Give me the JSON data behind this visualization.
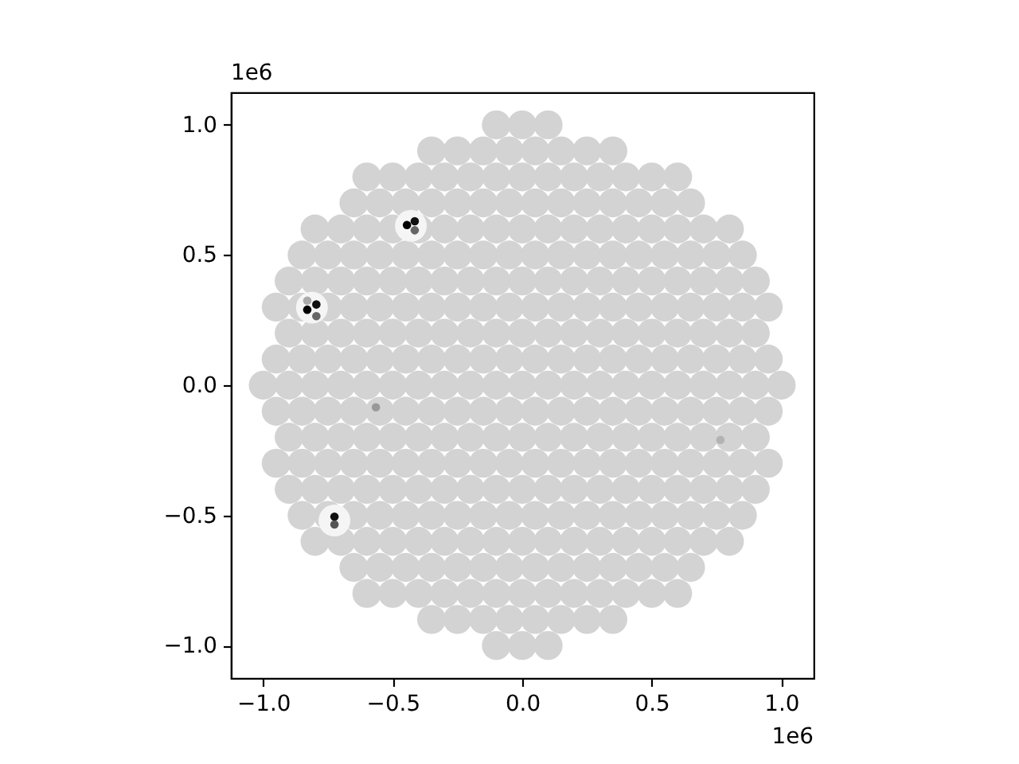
{
  "chart_data": {
    "type": "scatter",
    "annotations": [
      "1e6",
      "1e6"
    ],
    "marker": "circle",
    "xlim": [
      -1.125,
      1.125
    ],
    "ylim": [
      -1.125,
      1.125
    ],
    "xticks": [
      {
        "value": -1,
        "label": "−1.0"
      },
      {
        "value": -0.5,
        "label": "−0.5"
      },
      {
        "value": 0,
        "label": "0.0"
      },
      {
        "value": 0.5,
        "label": "0.5"
      },
      {
        "value": 1,
        "label": "1.0"
      }
    ],
    "yticks": [
      {
        "value": -1,
        "label": "−1.0"
      },
      {
        "value": -0.5,
        "label": "−0.5"
      },
      {
        "value": 0,
        "label": "0.0"
      },
      {
        "value": 0.5,
        "label": "0.5"
      },
      {
        "value": 1,
        "label": "1.0"
      }
    ],
    "series": [
      {
        "color": "#d3d3d3",
        "x": [
          -0.1,
          0,
          0.1,
          -0.35,
          -0.25,
          -0.15,
          -0.05,
          0.05,
          0.15,
          0.25,
          0.35,
          -0.6,
          -0.5,
          -0.4,
          -0.3,
          -0.2,
          -0.1,
          0,
          0.1,
          0.2,
          0.3,
          0.4,
          0.5,
          0.6,
          -0.65,
          -0.55,
          -0.45,
          -0.35,
          -0.25,
          -0.15,
          -0.05,
          0.05,
          0.15,
          0.25,
          0.35,
          0.45,
          0.55,
          0.65,
          -0.8,
          -0.7,
          -0.6,
          -0.5,
          -0.4,
          -0.3,
          -0.2,
          -0.1,
          0,
          0.1,
          0.2,
          0.3,
          0.4,
          0.5,
          0.6,
          0.7,
          0.8,
          -0.85,
          -0.75,
          -0.65,
          -0.55,
          -0.45,
          -0.35,
          -0.25,
          -0.15,
          -0.05,
          0.05,
          0.15,
          0.25,
          0.35,
          0.45,
          0.55,
          0.65,
          0.75,
          0.85,
          -0.9,
          -0.8,
          -0.7,
          -0.6,
          -0.5,
          -0.4,
          -0.3,
          -0.2,
          -0.1,
          0,
          0.1,
          0.2,
          0.3,
          0.4,
          0.5,
          0.6,
          0.7,
          0.8,
          0.9,
          -0.95,
          -0.85,
          -0.75,
          -0.65,
          -0.55,
          -0.45,
          -0.35,
          -0.25,
          -0.15,
          -0.05,
          0.05,
          0.15,
          0.25,
          0.35,
          0.45,
          0.55,
          0.65,
          0.75,
          0.85,
          0.95,
          -0.9,
          -0.8,
          -0.7,
          -0.6,
          -0.5,
          -0.4,
          -0.3,
          -0.2,
          -0.1,
          0,
          0.1,
          0.2,
          0.3,
          0.4,
          0.5,
          0.6,
          0.7,
          0.8,
          0.9,
          -0.95,
          -0.85,
          -0.75,
          -0.65,
          -0.55,
          -0.45,
          -0.35,
          -0.25,
          -0.15,
          -0.05,
          0.05,
          0.15,
          0.25,
          0.35,
          0.45,
          0.55,
          0.65,
          0.75,
          0.85,
          0.95,
          -1,
          -0.9,
          -0.8,
          -0.7,
          -0.6,
          -0.5,
          -0.4,
          -0.3,
          -0.2,
          -0.1,
          0,
          0.1,
          0.2,
          0.3,
          0.4,
          0.5,
          0.6,
          0.7,
          0.8,
          0.9,
          1,
          -0.95,
          -0.85,
          -0.75,
          -0.65,
          -0.55,
          -0.45,
          -0.35,
          -0.25,
          -0.15,
          -0.05,
          0.05,
          0.15,
          0.25,
          0.35,
          0.45,
          0.55,
          0.65,
          0.75,
          0.85,
          0.95,
          -0.9,
          -0.8,
          -0.7,
          -0.6,
          -0.5,
          -0.4,
          -0.3,
          -0.2,
          -0.1,
          0,
          0.1,
          0.2,
          0.3,
          0.4,
          0.5,
          0.6,
          0.7,
          0.8,
          0.9,
          -0.95,
          -0.85,
          -0.75,
          -0.65,
          -0.55,
          -0.45,
          -0.35,
          -0.25,
          -0.15,
          -0.05,
          0.05,
          0.15,
          0.25,
          0.35,
          0.45,
          0.55,
          0.65,
          0.75,
          0.85,
          0.95,
          -0.9,
          -0.8,
          -0.7,
          -0.6,
          -0.5,
          -0.4,
          -0.3,
          -0.2,
          -0.1,
          0,
          0.1,
          0.2,
          0.3,
          0.4,
          0.5,
          0.6,
          0.7,
          0.8,
          0.9,
          -0.85,
          -0.75,
          -0.65,
          -0.55,
          -0.45,
          -0.35,
          -0.25,
          -0.15,
          -0.05,
          0.05,
          0.15,
          0.25,
          0.35,
          0.45,
          0.55,
          0.65,
          0.75,
          0.85,
          -0.8,
          -0.7,
          -0.6,
          -0.5,
          -0.4,
          -0.3,
          -0.2,
          -0.1,
          0,
          0.1,
          0.2,
          0.3,
          0.4,
          0.5,
          0.6,
          0.7,
          0.8,
          -0.65,
          -0.55,
          -0.45,
          -0.35,
          -0.25,
          -0.15,
          -0.05,
          0.05,
          0.15,
          0.25,
          0.35,
          0.45,
          0.55,
          0.65,
          -0.6,
          -0.5,
          -0.4,
          -0.3,
          -0.2,
          -0.1,
          0,
          0.1,
          0.2,
          0.3,
          0.4,
          0.5,
          0.6,
          -0.35,
          -0.25,
          -0.15,
          -0.05,
          0.05,
          0.15,
          0.25,
          0.35,
          -0.1,
          0,
          0.1
        ],
        "values": [
          1,
          1,
          1,
          0.9,
          0.9,
          0.9,
          0.9,
          0.9,
          0.9,
          0.9,
          0.9,
          0.8,
          0.8,
          0.8,
          0.8,
          0.8,
          0.8,
          0.8,
          0.8,
          0.8,
          0.8,
          0.8,
          0.8,
          0.8,
          0.7,
          0.7,
          0.7,
          0.7,
          0.7,
          0.7,
          0.7,
          0.7,
          0.7,
          0.7,
          0.7,
          0.7,
          0.7,
          0.7,
          0.6,
          0.6,
          0.6,
          0.6,
          0.6,
          0.6,
          0.6,
          0.6,
          0.6,
          0.6,
          0.6,
          0.6,
          0.6,
          0.6,
          0.6,
          0.6,
          0.6,
          0.5,
          0.5,
          0.5,
          0.5,
          0.5,
          0.5,
          0.5,
          0.5,
          0.5,
          0.5,
          0.5,
          0.5,
          0.5,
          0.5,
          0.5,
          0.5,
          0.5,
          0.5,
          0.4,
          0.4,
          0.4,
          0.4,
          0.4,
          0.4,
          0.4,
          0.4,
          0.4,
          0.4,
          0.4,
          0.4,
          0.4,
          0.4,
          0.4,
          0.4,
          0.4,
          0.4,
          0.4,
          0.3,
          0.3,
          0.3,
          0.3,
          0.3,
          0.3,
          0.3,
          0.3,
          0.3,
          0.3,
          0.3,
          0.3,
          0.3,
          0.3,
          0.3,
          0.3,
          0.3,
          0.3,
          0.3,
          0.3,
          0.2,
          0.2,
          0.2,
          0.2,
          0.2,
          0.2,
          0.2,
          0.2,
          0.2,
          0.2,
          0.2,
          0.2,
          0.2,
          0.2,
          0.2,
          0.2,
          0.2,
          0.2,
          0.2,
          0.1,
          0.1,
          0.1,
          0.1,
          0.1,
          0.1,
          0.1,
          0.1,
          0.1,
          0.1,
          0.1,
          0.1,
          0.1,
          0.1,
          0.1,
          0.1,
          0.1,
          0.1,
          0.1,
          0.1,
          0,
          0,
          0,
          0,
          0,
          0,
          0,
          0,
          0,
          0,
          0,
          0,
          0,
          0,
          0,
          0,
          0,
          0,
          0,
          0,
          0,
          -0.1,
          -0.1,
          -0.1,
          -0.1,
          -0.1,
          -0.1,
          -0.1,
          -0.1,
          -0.1,
          -0.1,
          -0.1,
          -0.1,
          -0.1,
          -0.1,
          -0.1,
          -0.1,
          -0.1,
          -0.1,
          -0.1,
          -0.1,
          -0.2,
          -0.2,
          -0.2,
          -0.2,
          -0.2,
          -0.2,
          -0.2,
          -0.2,
          -0.2,
          -0.2,
          -0.2,
          -0.2,
          -0.2,
          -0.2,
          -0.2,
          -0.2,
          -0.2,
          -0.2,
          -0.2,
          -0.3,
          -0.3,
          -0.3,
          -0.3,
          -0.3,
          -0.3,
          -0.3,
          -0.3,
          -0.3,
          -0.3,
          -0.3,
          -0.3,
          -0.3,
          -0.3,
          -0.3,
          -0.3,
          -0.3,
          -0.3,
          -0.3,
          -0.3,
          -0.4,
          -0.4,
          -0.4,
          -0.4,
          -0.4,
          -0.4,
          -0.4,
          -0.4,
          -0.4,
          -0.4,
          -0.4,
          -0.4,
          -0.4,
          -0.4,
          -0.4,
          -0.4,
          -0.4,
          -0.4,
          -0.4,
          -0.5,
          -0.5,
          -0.5,
          -0.5,
          -0.5,
          -0.5,
          -0.5,
          -0.5,
          -0.5,
          -0.5,
          -0.5,
          -0.5,
          -0.5,
          -0.5,
          -0.5,
          -0.5,
          -0.5,
          -0.5,
          -0.6,
          -0.6,
          -0.6,
          -0.6,
          -0.6,
          -0.6,
          -0.6,
          -0.6,
          -0.6,
          -0.6,
          -0.6,
          -0.6,
          -0.6,
          -0.6,
          -0.6,
          -0.6,
          -0.6,
          -0.7,
          -0.7,
          -0.7,
          -0.7,
          -0.7,
          -0.7,
          -0.7,
          -0.7,
          -0.7,
          -0.7,
          -0.7,
          -0.7,
          -0.7,
          -0.7,
          -0.8,
          -0.8,
          -0.8,
          -0.8,
          -0.8,
          -0.8,
          -0.8,
          -0.8,
          -0.8,
          -0.8,
          -0.8,
          -0.8,
          -0.8,
          -0.9,
          -0.9,
          -0.9,
          -0.9,
          -0.9,
          -0.9,
          -0.9,
          -0.9,
          -1,
          -1,
          -1
        ]
      },
      {
        "color": "#f5f5f5",
        "x": [
          -0.43,
          -0.812,
          -0.725
        ],
        "values": [
          0.612,
          0.298,
          -0.52
        ]
      },
      {
        "colors": [
          "#000000",
          "#111111",
          "#666666",
          "#000000",
          "#111111",
          "#666666",
          "#aaaaaa",
          "#111111",
          "#555555",
          "#999999",
          "#b3b3b3"
        ],
        "x": [
          -0.445,
          -0.415,
          -0.415,
          -0.83,
          -0.795,
          -0.795,
          -0.83,
          -0.725,
          -0.725,
          -0.565,
          0.765
        ],
        "values": [
          0.615,
          0.63,
          0.595,
          0.29,
          0.31,
          0.265,
          0.325,
          -0.505,
          -0.535,
          -0.085,
          -0.21
        ]
      }
    ]
  }
}
